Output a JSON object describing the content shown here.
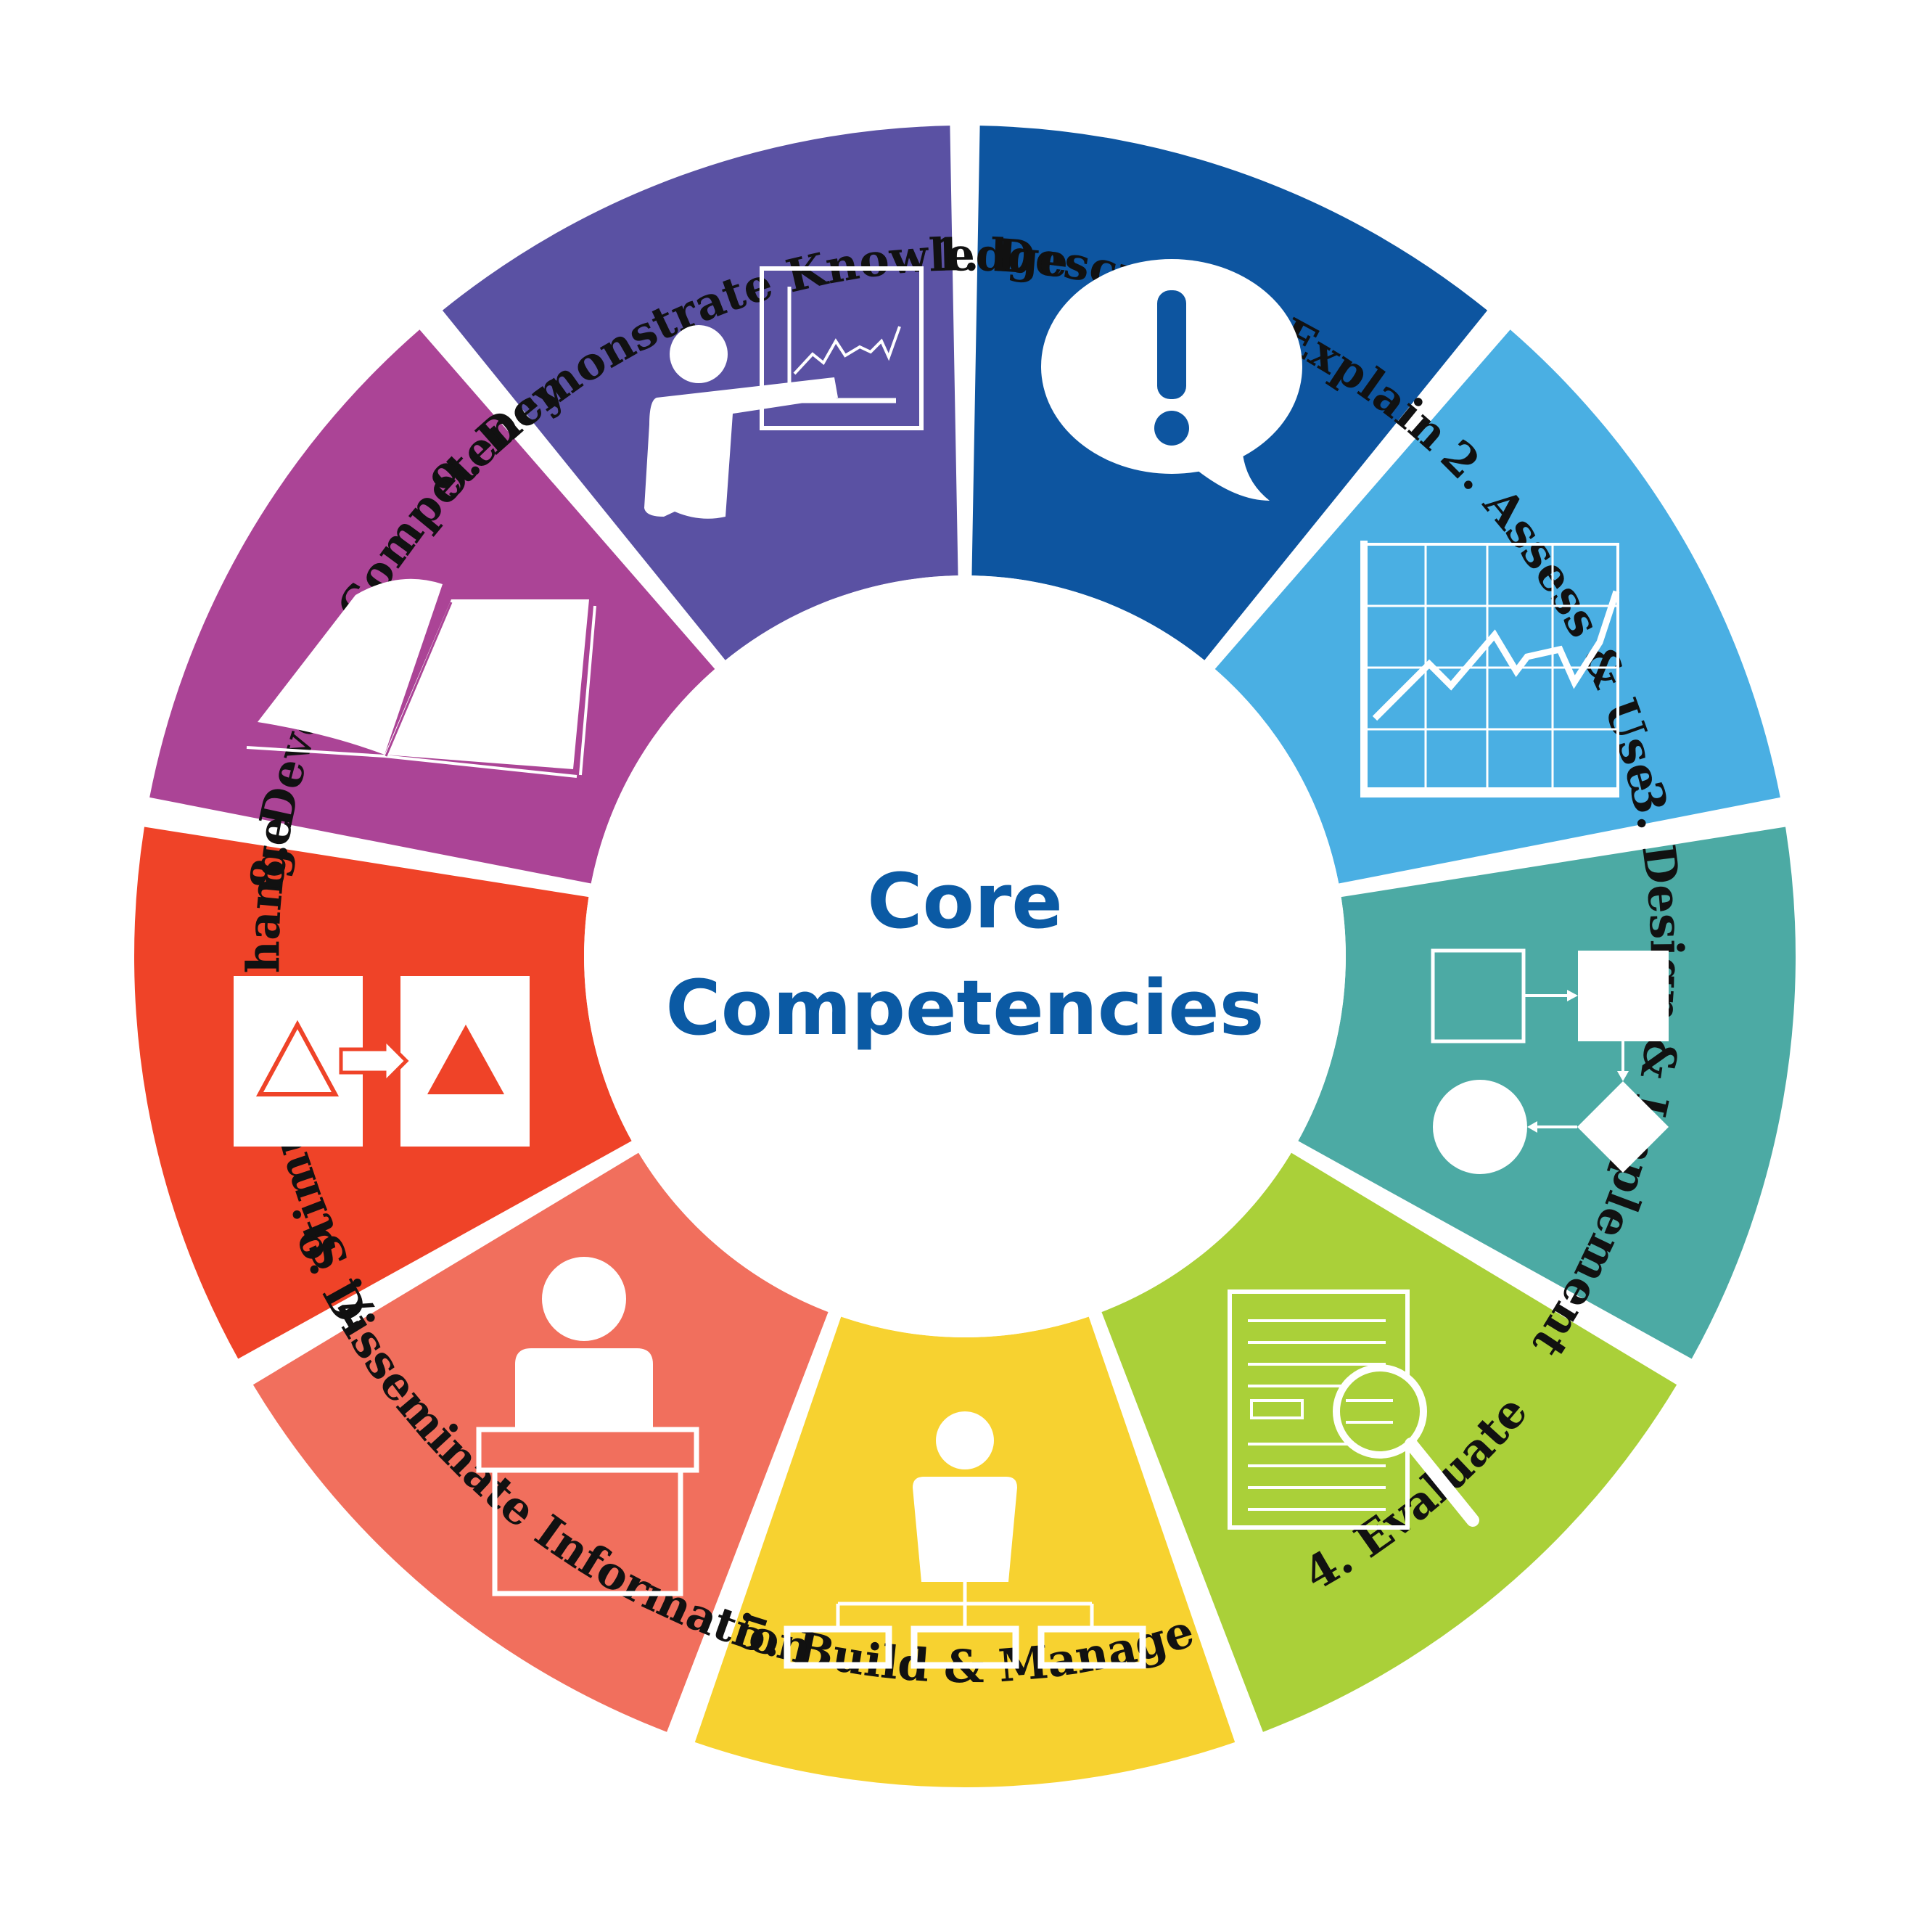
{
  "center": {
    "line1": "Core",
    "line2": "Competencies"
  },
  "segments": [
    {
      "label": "1. Describe & Explain",
      "color": "#0d55a0",
      "icon": "speech-bubble-exclamation-icon"
    },
    {
      "label": "2. Assess & Use",
      "color": "#4aafe3",
      "icon": "line-chart-grid-icon"
    },
    {
      "label": "3. Design & Implement",
      "color": "#4caaa4",
      "icon": "flowchart-icon"
    },
    {
      "label": "4. Evaluate",
      "color": "#aad039",
      "icon": "document-magnifier-icon"
    },
    {
      "label": "5. Build & Manage",
      "color": "#f7d230",
      "icon": "org-chart-person-icon"
    },
    {
      "label": "6. Disseminate Information",
      "color": "#f16f5d",
      "icon": "speaker-podium-icon"
    },
    {
      "label": "7. Stimulate Change",
      "color": "#ef4328",
      "icon": "triangle-transform-icon"
    },
    {
      "label": "8. Develop Competency",
      "color": "#ab4496",
      "icon": "open-book-icon"
    },
    {
      "label": "9. Demonstrate Knowledge",
      "color": "#5a51a3",
      "icon": "presenter-chart-icon"
    }
  ],
  "colors": {
    "title": "#0b5aa4",
    "label": "#111111",
    "icon": "#ffffff",
    "background": "#ffffff"
  }
}
